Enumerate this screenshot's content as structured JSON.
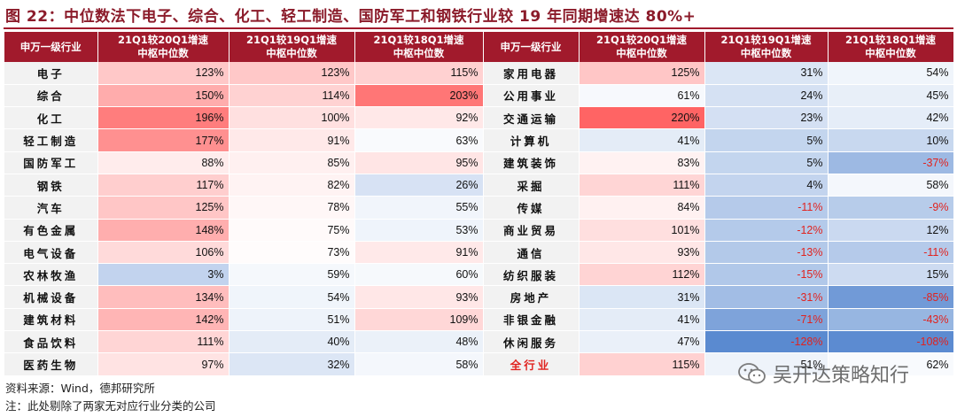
{
  "title": "图 22：中位数法下电子、综合、化工、轻工制造、国防军工和钢铁行业较 19 年同期增速达 80%+",
  "headers": {
    "industry": "申万一级行业",
    "col1": [
      "21Q1较20Q1增速",
      "中枢中位数"
    ],
    "col2": [
      "21Q1较19Q1增速",
      "中枢中位数"
    ],
    "col3": [
      "21Q1较18Q1增速",
      "中枢中位数"
    ]
  },
  "left_rows": [
    {
      "name": "电子",
      "v1": "123%",
      "v2": "123%",
      "v3": "115%"
    },
    {
      "name": "综合",
      "v1": "150%",
      "v2": "114%",
      "v3": "203%"
    },
    {
      "name": "化工",
      "v1": "196%",
      "v2": "100%",
      "v3": "92%"
    },
    {
      "name": "轻工制造",
      "v1": "177%",
      "v2": "91%",
      "v3": "63%"
    },
    {
      "name": "国防军工",
      "v1": "88%",
      "v2": "85%",
      "v3": "95%"
    },
    {
      "name": "钢铁",
      "v1": "117%",
      "v2": "82%",
      "v3": "26%"
    },
    {
      "name": "汽车",
      "v1": "125%",
      "v2": "78%",
      "v3": "55%"
    },
    {
      "name": "有色金属",
      "v1": "148%",
      "v2": "75%",
      "v3": "53%"
    },
    {
      "name": "电气设备",
      "v1": "106%",
      "v2": "73%",
      "v3": "91%"
    },
    {
      "name": "农林牧渔",
      "v1": "3%",
      "v2": "59%",
      "v3": "60%"
    },
    {
      "name": "机械设备",
      "v1": "134%",
      "v2": "54%",
      "v3": "93%"
    },
    {
      "name": "建筑材料",
      "v1": "142%",
      "v2": "51%",
      "v3": "109%"
    },
    {
      "name": "食品饮料",
      "v1": "111%",
      "v2": "40%",
      "v3": "48%"
    },
    {
      "name": "医药生物",
      "v1": "97%",
      "v2": "32%",
      "v3": "58%"
    }
  ],
  "right_rows": [
    {
      "name": "家用电器",
      "v1": "125%",
      "v2": "31%",
      "v3": "54%"
    },
    {
      "name": "公用事业",
      "v1": "61%",
      "v2": "24%",
      "v3": "45%"
    },
    {
      "name": "交通运输",
      "v1": "220%",
      "v2": "23%",
      "v3": "42%"
    },
    {
      "name": "计算机",
      "v1": "41%",
      "v2": "5%",
      "v3": "10%"
    },
    {
      "name": "建筑装饰",
      "v1": "83%",
      "v2": "5%",
      "v3": "-37%"
    },
    {
      "name": "采掘",
      "v1": "111%",
      "v2": "4%",
      "v3": "58%"
    },
    {
      "name": "传媒",
      "v1": "84%",
      "v2": "-11%",
      "v3": "-9%"
    },
    {
      "name": "商业贸易",
      "v1": "101%",
      "v2": "-12%",
      "v3": "12%"
    },
    {
      "name": "通信",
      "v1": "93%",
      "v2": "-13%",
      "v3": "-11%"
    },
    {
      "name": "纺织服装",
      "v1": "112%",
      "v2": "-15%",
      "v3": "15%"
    },
    {
      "name": "房地产",
      "v1": "31%",
      "v2": "-31%",
      "v3": "-85%"
    },
    {
      "name": "非银金融",
      "v1": "41%",
      "v2": "-71%",
      "v3": "-43%"
    },
    {
      "name": "休闲服务",
      "v1": "47%",
      "v2": "-128%",
      "v3": "-108%"
    },
    {
      "name": "全行业",
      "v1": "115%",
      "v2": "51%",
      "v3": "62%",
      "highlight": true
    }
  ],
  "source_line": "资料来源：Wind，德邦研究所",
  "note_line": "注：此处剔除了两家无对应行业分类的公司",
  "watermark_text": "吴开达策略知行",
  "colors": {
    "header_bg": "#a11a2c",
    "title_color": "#8b1b2a",
    "high_red": "#f07070",
    "low_blue": "#5b8bd0",
    "negative_text": "#e0231f"
  }
}
